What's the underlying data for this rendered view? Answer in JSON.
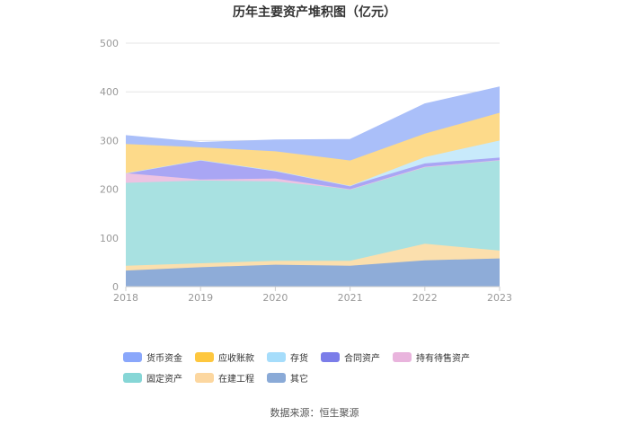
{
  "title": "历年主要资产堆积图（亿元）",
  "source": "数据来源：恒生聚源",
  "chart_data": {
    "type": "area",
    "stacked": true,
    "title": "历年主要资产堆积图（亿元）",
    "x": [
      "2018",
      "2019",
      "2020",
      "2021",
      "2022",
      "2023"
    ],
    "ylim": [
      0,
      500
    ],
    "yticks": [
      0,
      100,
      200,
      300,
      400,
      500
    ],
    "grid": true,
    "legend_position": "bottom",
    "series": [
      {
        "name": "其它",
        "color": "#8eacd8",
        "values": [
          33,
          40,
          45,
          43,
          54,
          58
        ]
      },
      {
        "name": "在建工程",
        "color": "#fbdfad",
        "values": [
          10,
          8,
          8,
          10,
          34,
          16
        ]
      },
      {
        "name": "固定资产",
        "color": "#a8e1e1",
        "values": [
          170,
          170,
          163,
          147,
          158,
          186
        ]
      },
      {
        "name": "持有待售资产",
        "color": "#edc3e2",
        "values": [
          20,
          2,
          6,
          0,
          0,
          0
        ]
      },
      {
        "name": "合同资产",
        "color": "#a9a6f4",
        "values": [
          0,
          40,
          16,
          7,
          7,
          5
        ]
      },
      {
        "name": "存货",
        "color": "#c8eafb",
        "values": [
          0,
          0,
          0,
          0,
          13,
          35
        ]
      },
      {
        "name": "应收账款",
        "color": "#fdda8a",
        "values": [
          60,
          26,
          40,
          52,
          48,
          57
        ]
      },
      {
        "name": "货币资金",
        "color": "#aabff9",
        "values": [
          17,
          10,
          23,
          43,
          61,
          53
        ]
      }
    ],
    "legend": [
      {
        "name": "货币资金",
        "color": "#8aa7fb"
      },
      {
        "name": "应收账款",
        "color": "#fec73e"
      },
      {
        "name": "存货",
        "color": "#a6ddfb"
      },
      {
        "name": "合同资产",
        "color": "#7b7de9"
      },
      {
        "name": "持有待售资产",
        "color": "#e9b4dd"
      },
      {
        "name": "固定资产",
        "color": "#86d6d6"
      },
      {
        "name": "在建工程",
        "color": "#fcd7a0"
      },
      {
        "name": "其它",
        "color": "#8aaad7"
      }
    ]
  }
}
